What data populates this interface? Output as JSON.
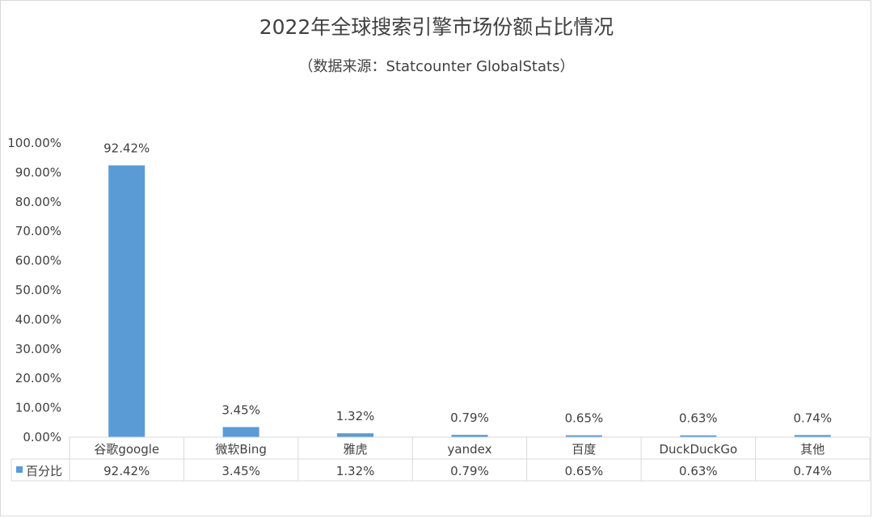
{
  "chart_data": {
    "type": "bar",
    "title": "2022年全球搜索引擎市场份额占比情况",
    "subtitle": "（数据来源：Statcounter GlobalStats）",
    "categories": [
      "谷歌google",
      "微软Bing",
      "雅虎",
      "yandex",
      "百度",
      "DuckDuckGo",
      "其他"
    ],
    "series": [
      {
        "name": "百分比",
        "values": [
          92.42,
          3.45,
          1.32,
          0.79,
          0.65,
          0.63,
          0.74
        ],
        "labels": [
          "92.42%",
          "3.45%",
          "1.32%",
          "0.79%",
          "0.65%",
          "0.63%",
          "0.74%"
        ],
        "color": "#5b9bd5"
      }
    ],
    "ylim": [
      0,
      100
    ],
    "yticks": [
      0,
      10,
      20,
      30,
      40,
      50,
      60,
      70,
      80,
      90,
      100
    ],
    "ytick_labels": [
      "0.00%",
      "10.00%",
      "20.00%",
      "30.00%",
      "40.00%",
      "50.00%",
      "60.00%",
      "70.00%",
      "80.00%",
      "90.00%",
      "100.00%"
    ],
    "grid": false,
    "legend": "data-table"
  }
}
